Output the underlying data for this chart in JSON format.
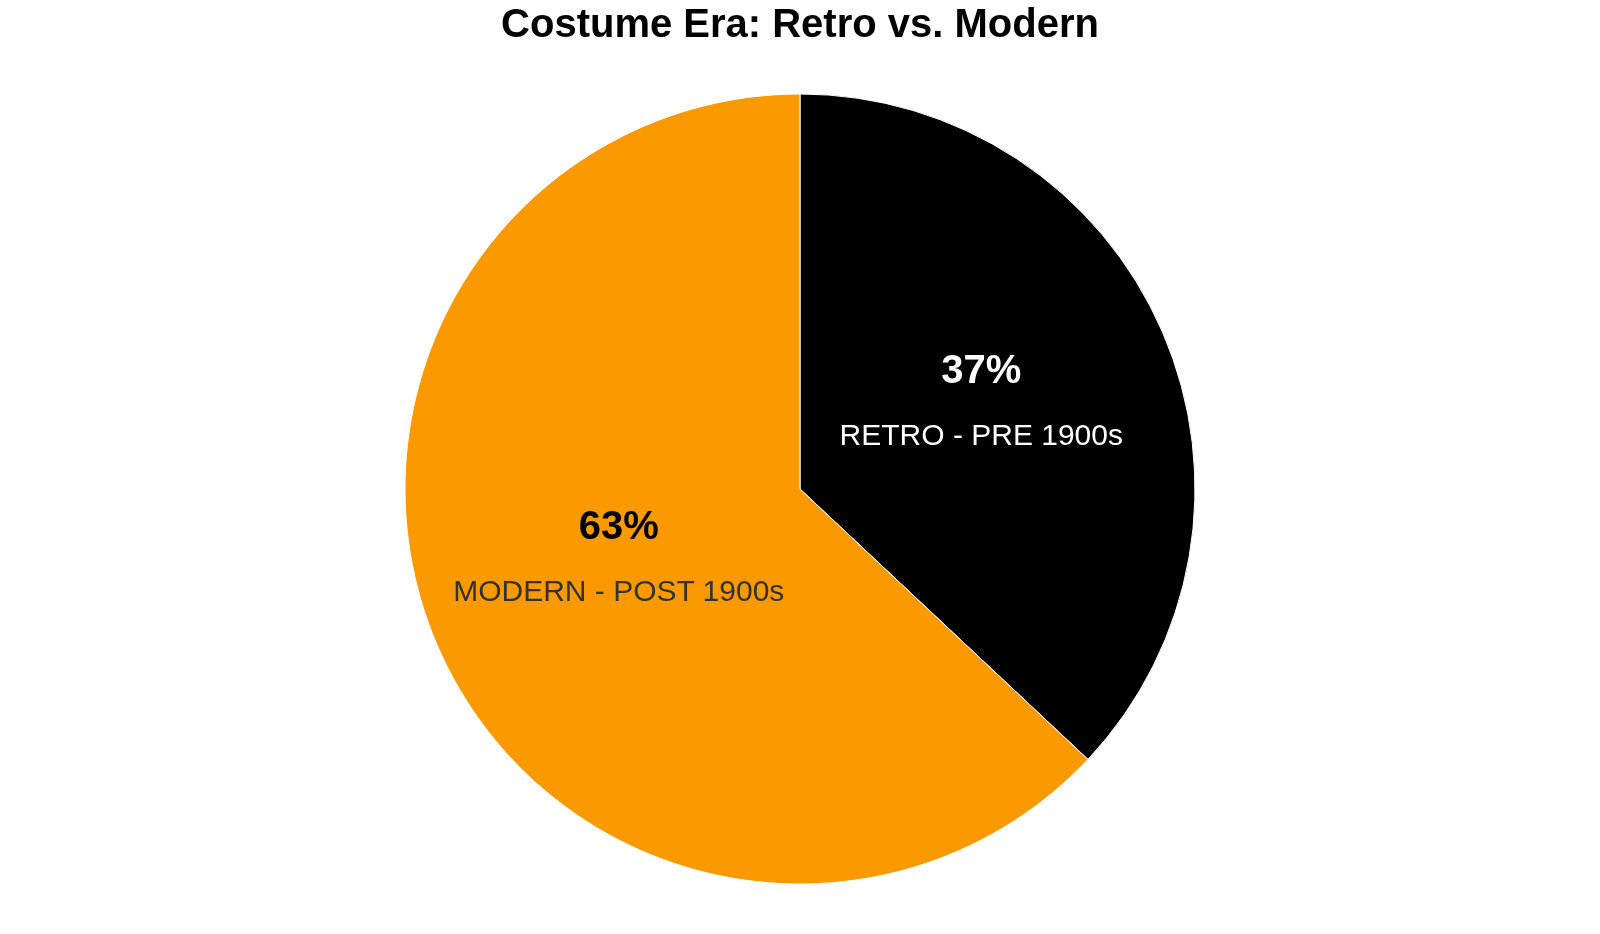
{
  "chart_data": {
    "type": "pie",
    "title": "Costume Era: Retro vs. Modern",
    "categories": [
      "RETRO - PRE 1900s",
      "MODERN - POST 1900s"
    ],
    "values": [
      37,
      63
    ],
    "value_labels": [
      "37%",
      "63%"
    ],
    "colors": [
      "#000000",
      "#fa9a00"
    ],
    "legend": false
  }
}
